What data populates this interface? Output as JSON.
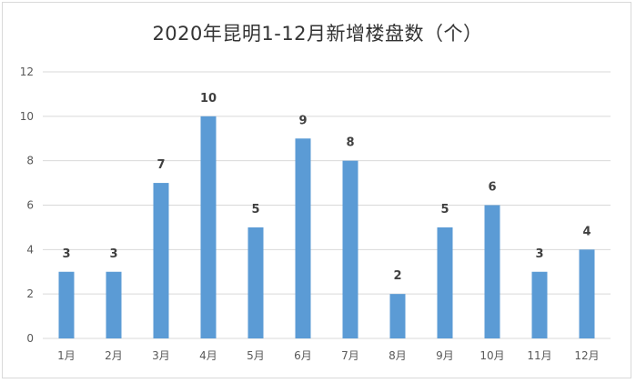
{
  "chart_data": {
    "type": "bar",
    "title": "2020年昆明1-12月新增楼盘数（个）",
    "categories": [
      "1月",
      "2月",
      "3月",
      "4月",
      "5月",
      "6月",
      "7月",
      "8月",
      "9月",
      "10月",
      "11月",
      "12月"
    ],
    "values": [
      3,
      3,
      7,
      10,
      5,
      9,
      8,
      2,
      5,
      6,
      3,
      4
    ],
    "yticks": [
      "0",
      "2",
      "4",
      "6",
      "8",
      "10",
      "12"
    ],
    "ylim": [
      0,
      12
    ],
    "grid": true,
    "legend": "none",
    "bar_color": "#5b9bd5",
    "grid_color": "#d9d9d9"
  }
}
